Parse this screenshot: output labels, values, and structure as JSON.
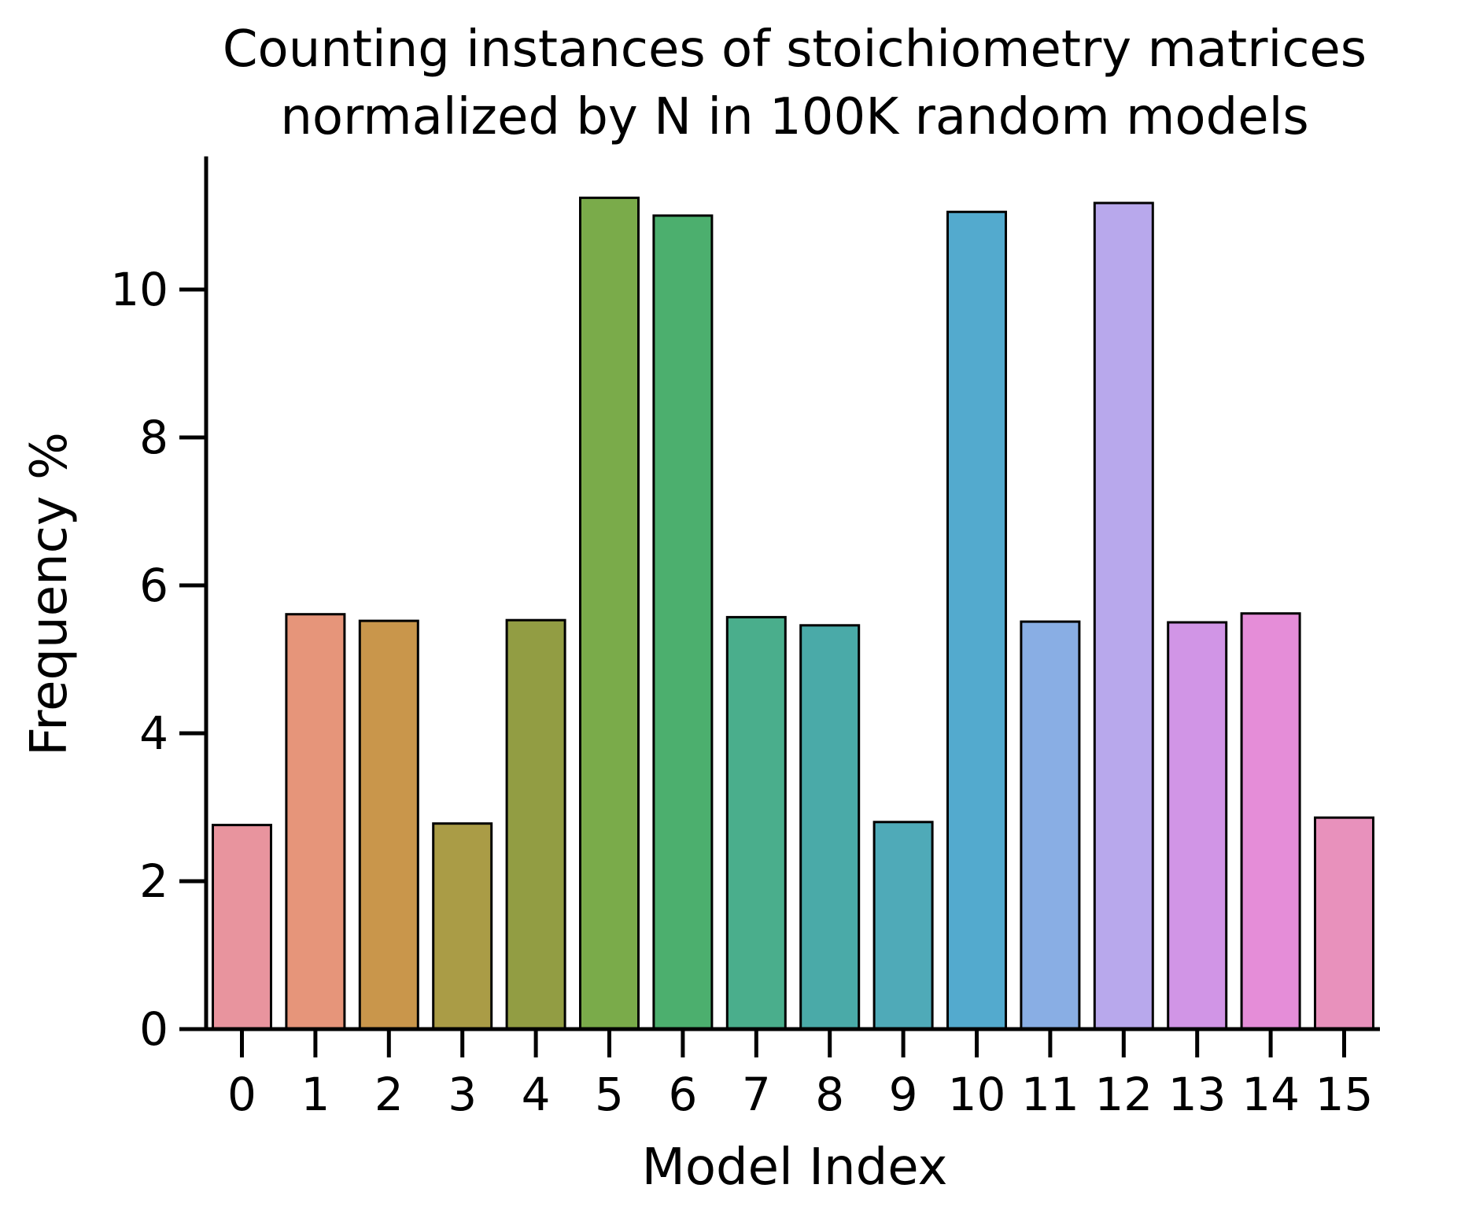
{
  "chart_data": {
    "type": "bar",
    "title_lines": [
      "Counting instances of stoichiometry matrices",
      "normalized by N in 100K random models"
    ],
    "xlabel": "Model Index",
    "ylabel": "Frequency %",
    "categories": [
      "0",
      "1",
      "2",
      "3",
      "4",
      "5",
      "6",
      "7",
      "8",
      "9",
      "10",
      "11",
      "12",
      "13",
      "14",
      "15"
    ],
    "values": [
      2.76,
      5.61,
      5.52,
      2.78,
      5.53,
      11.24,
      11.0,
      5.57,
      5.46,
      2.8,
      11.05,
      5.51,
      11.17,
      5.5,
      5.62,
      2.86
    ],
    "colors": [
      "#e8949e",
      "#e6957a",
      "#c9964b",
      "#aa9c46",
      "#929d43",
      "#7aab4a",
      "#4caf6e",
      "#4aae8c",
      "#4aaaa8",
      "#4faab8",
      "#53aace",
      "#89aee4",
      "#b8a8ec",
      "#d195e6",
      "#e58dd8",
      "#e891bc"
    ],
    "ylim": [
      0,
      11.8
    ],
    "yticks": [
      0,
      2,
      4,
      6,
      8,
      10
    ],
    "grid": false
  }
}
